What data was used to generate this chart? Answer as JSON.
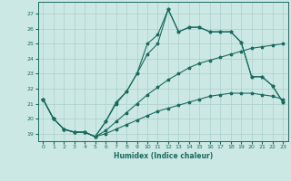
{
  "xlabel": "Humidex (Indice chaleur)",
  "bg_color": "#cce8e4",
  "grid_color": "#aacfcb",
  "line_color": "#1a6b5e",
  "xlim": [
    -0.5,
    23.5
  ],
  "ylim": [
    18.5,
    27.8
  ],
  "yticks": [
    19,
    20,
    21,
    22,
    23,
    24,
    25,
    26,
    27
  ],
  "xticks": [
    0,
    1,
    2,
    3,
    4,
    5,
    6,
    7,
    8,
    9,
    10,
    11,
    12,
    13,
    14,
    15,
    16,
    17,
    18,
    19,
    20,
    21,
    22,
    23
  ],
  "lines": [
    {
      "x": [
        0,
        1,
        2,
        3,
        4,
        5,
        6,
        7,
        8,
        9,
        10,
        11,
        12,
        13,
        14,
        15,
        16,
        17,
        18,
        19,
        20,
        21,
        22,
        23
      ],
      "y": [
        21.3,
        20.0,
        19.3,
        19.1,
        19.1,
        18.8,
        19.0,
        19.3,
        19.6,
        19.9,
        20.2,
        20.5,
        20.7,
        20.9,
        21.1,
        21.3,
        21.5,
        21.6,
        21.7,
        21.7,
        21.7,
        21.6,
        21.5,
        21.3
      ]
    },
    {
      "x": [
        0,
        1,
        2,
        3,
        4,
        5,
        6,
        7,
        8,
        9,
        10,
        11,
        12,
        13,
        14,
        15,
        16,
        17,
        18,
        19,
        20,
        21,
        22,
        23
      ],
      "y": [
        21.3,
        20.0,
        19.3,
        19.1,
        19.1,
        18.8,
        19.2,
        19.8,
        20.4,
        21.0,
        21.6,
        22.1,
        22.6,
        23.0,
        23.4,
        23.7,
        23.9,
        24.1,
        24.3,
        24.5,
        24.7,
        24.8,
        24.9,
        25.0
      ]
    },
    {
      "x": [
        0,
        1,
        2,
        3,
        4,
        5,
        6,
        7,
        8,
        9,
        10,
        11,
        12,
        13,
        14,
        15,
        16,
        17,
        18,
        19,
        20,
        21,
        22,
        23
      ],
      "y": [
        21.3,
        20.0,
        19.3,
        19.1,
        19.1,
        18.8,
        19.8,
        21.0,
        21.8,
        23.0,
        25.0,
        25.6,
        27.3,
        25.8,
        26.1,
        26.1,
        25.8,
        25.8,
        25.8,
        25.1,
        22.8,
        22.8,
        22.2,
        21.1
      ]
    },
    {
      "x": [
        0,
        1,
        2,
        3,
        4,
        5,
        6,
        7,
        8,
        9,
        10,
        11,
        12,
        13,
        14,
        15,
        16,
        17,
        18,
        19,
        20,
        21,
        22,
        23
      ],
      "y": [
        21.3,
        20.0,
        19.3,
        19.1,
        19.1,
        18.8,
        19.8,
        21.1,
        21.8,
        23.0,
        24.3,
        25.0,
        27.3,
        25.8,
        26.1,
        26.1,
        25.8,
        25.8,
        25.8,
        25.1,
        22.8,
        22.8,
        22.2,
        21.1
      ]
    }
  ]
}
